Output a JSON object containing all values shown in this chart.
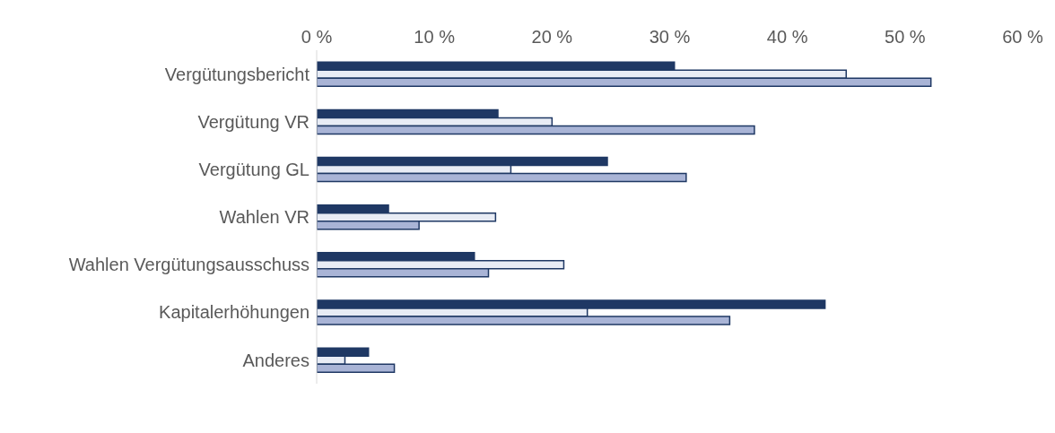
{
  "chart_data": {
    "type": "bar",
    "orientation": "horizontal",
    "categories": [
      "Vergütungsbericht",
      "Vergütung VR",
      "Vergütung GL",
      "Wahlen VR",
      "Wahlen Vergütungsausschuss",
      "Kapitalerhöhungen",
      "Anderes"
    ],
    "series": [
      {
        "color": "#1f3864",
        "values": [
          30.4,
          15.4,
          24.7,
          6.1,
          13.4,
          43.2,
          4.4
        ]
      },
      {
        "color": "#e8ecf5",
        "values": [
          45.0,
          20.0,
          16.5,
          15.2,
          21.0,
          23.0,
          2.4
        ]
      },
      {
        "color": "#a9b4d6",
        "values": [
          52.2,
          37.2,
          31.4,
          8.7,
          14.6,
          35.1,
          6.6
        ]
      }
    ],
    "xlim": [
      0,
      60
    ],
    "xticks": [
      {
        "value": 0,
        "label": "0 %"
      },
      {
        "value": 10,
        "label": "10 %"
      },
      {
        "value": 20,
        "label": "20 %"
      },
      {
        "value": 30,
        "label": "30 %"
      },
      {
        "value": 40,
        "label": "40 %"
      },
      {
        "value": 50,
        "label": "50 %"
      },
      {
        "value": 60,
        "label": "60 %"
      }
    ],
    "grid": false
  }
}
